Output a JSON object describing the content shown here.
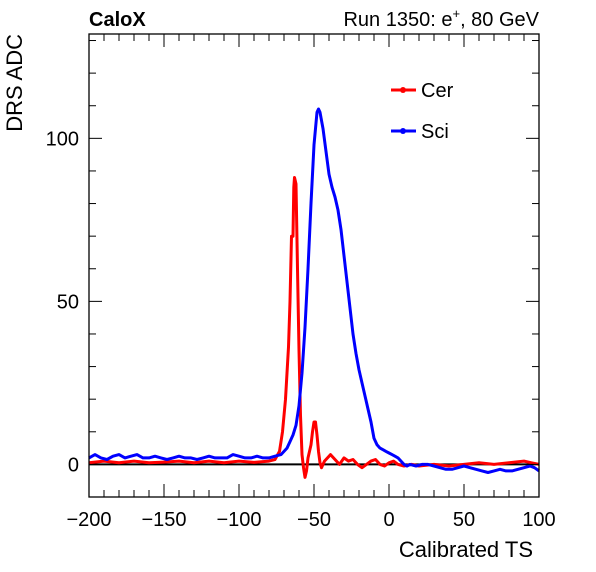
{
  "header": {
    "left": "CaloX",
    "right_prefix": "Run 1350: e",
    "right_sup": "+",
    "right_suffix": ", 80 GeV"
  },
  "chart_data": {
    "type": "line",
    "title": "",
    "xlabel": "Calibrated TS",
    "ylabel": "DRS ADC",
    "xlim": [
      -200,
      100
    ],
    "ylim": [
      -10,
      132
    ],
    "x_ticks": [
      -200,
      -150,
      -100,
      -50,
      0,
      50,
      100
    ],
    "x_tick_labels": [
      "−200",
      "−150",
      "−100",
      "−50",
      "0",
      "50",
      "100"
    ],
    "y_ticks": [
      0,
      50,
      100
    ],
    "y_tick_labels": [
      "0",
      "50",
      "100"
    ],
    "baseline_y": 0,
    "grid": false,
    "legend_position": "top-right",
    "series": [
      {
        "name": "Cer",
        "color": "#ff0000",
        "points": [
          [
            -200,
            0.5
          ],
          [
            -190,
            1.0
          ],
          [
            -180,
            0.5
          ],
          [
            -170,
            1.0
          ],
          [
            -160,
            0.5
          ],
          [
            -150,
            0.7
          ],
          [
            -140,
            1.0
          ],
          [
            -130,
            0.5
          ],
          [
            -120,
            1.0
          ],
          [
            -110,
            0.5
          ],
          [
            -100,
            1.0
          ],
          [
            -90,
            0.6
          ],
          [
            -80,
            1.0
          ],
          [
            -76,
            1.5
          ],
          [
            -73,
            4
          ],
          [
            -71,
            10
          ],
          [
            -69,
            20
          ],
          [
            -67,
            36
          ],
          [
            -66,
            50
          ],
          [
            -65,
            70
          ],
          [
            -64,
            70
          ],
          [
            -63.5,
            85
          ],
          [
            -63,
            88
          ],
          [
            -62,
            86
          ],
          [
            -61,
            60
          ],
          [
            -60,
            35
          ],
          [
            -59,
            15
          ],
          [
            -58,
            3
          ],
          [
            -57,
            -1
          ],
          [
            -56,
            -4
          ],
          [
            -55,
            -2
          ],
          [
            -54,
            2
          ],
          [
            -52,
            6
          ],
          [
            -51,
            10
          ],
          [
            -50,
            13
          ],
          [
            -49,
            13
          ],
          [
            -48,
            9
          ],
          [
            -47,
            4
          ],
          [
            -46,
            0.5
          ],
          [
            -45,
            -1
          ],
          [
            -44,
            0
          ],
          [
            -43,
            1
          ],
          [
            -41,
            2
          ],
          [
            -39,
            3
          ],
          [
            -37,
            2
          ],
          [
            -35,
            1
          ],
          [
            -33,
            0
          ],
          [
            -30,
            2
          ],
          [
            -27,
            1
          ],
          [
            -24,
            1.5
          ],
          [
            -21,
            0
          ],
          [
            -18,
            -1
          ],
          [
            -15,
            0
          ],
          [
            -12,
            1
          ],
          [
            -9,
            1.5
          ],
          [
            -6,
            0
          ],
          [
            -3,
            -0.5
          ],
          [
            0,
            0.5
          ],
          [
            3,
            1
          ],
          [
            6,
            0
          ],
          [
            10,
            -0.5
          ],
          [
            15,
            0
          ],
          [
            20,
            -0.5
          ],
          [
            30,
            0
          ],
          [
            40,
            -0.5
          ],
          [
            50,
            0
          ],
          [
            60,
            0.5
          ],
          [
            70,
            0
          ],
          [
            80,
            0.5
          ],
          [
            90,
            1
          ],
          [
            95,
            0.5
          ],
          [
            100,
            0
          ]
        ]
      },
      {
        "name": "Sci",
        "color": "#0000ff",
        "points": [
          [
            -200,
            2
          ],
          [
            -196,
            3
          ],
          [
            -192,
            2
          ],
          [
            -188,
            1.5
          ],
          [
            -184,
            2.5
          ],
          [
            -180,
            3
          ],
          [
            -176,
            2
          ],
          [
            -172,
            2.5
          ],
          [
            -168,
            3
          ],
          [
            -164,
            2
          ],
          [
            -160,
            2
          ],
          [
            -156,
            2.5
          ],
          [
            -152,
            2
          ],
          [
            -148,
            1.5
          ],
          [
            -144,
            2
          ],
          [
            -140,
            2.5
          ],
          [
            -136,
            2
          ],
          [
            -132,
            2
          ],
          [
            -128,
            1.5
          ],
          [
            -124,
            2
          ],
          [
            -120,
            2.5
          ],
          [
            -116,
            2
          ],
          [
            -112,
            2
          ],
          [
            -108,
            2
          ],
          [
            -104,
            3
          ],
          [
            -100,
            2.5
          ],
          [
            -96,
            2
          ],
          [
            -92,
            2
          ],
          [
            -88,
            2.5
          ],
          [
            -84,
            2
          ],
          [
            -80,
            2
          ],
          [
            -76,
            2.5
          ],
          [
            -72,
            3
          ],
          [
            -70,
            4
          ],
          [
            -68,
            5
          ],
          [
            -66,
            7
          ],
          [
            -64,
            9
          ],
          [
            -62,
            12
          ],
          [
            -60,
            18
          ],
          [
            -58,
            28
          ],
          [
            -56,
            42
          ],
          [
            -54,
            60
          ],
          [
            -52,
            80
          ],
          [
            -50,
            98
          ],
          [
            -48,
            108
          ],
          [
            -47,
            109
          ],
          [
            -46,
            108
          ],
          [
            -44,
            103
          ],
          [
            -42,
            96
          ],
          [
            -40,
            89
          ],
          [
            -38,
            85
          ],
          [
            -36,
            82
          ],
          [
            -34,
            78
          ],
          [
            -32,
            72
          ],
          [
            -30,
            64
          ],
          [
            -28,
            56
          ],
          [
            -26,
            48
          ],
          [
            -24,
            40
          ],
          [
            -22,
            34
          ],
          [
            -20,
            29
          ],
          [
            -18,
            25
          ],
          [
            -16,
            21
          ],
          [
            -14,
            17
          ],
          [
            -12,
            13
          ],
          [
            -10,
            8
          ],
          [
            -8,
            6
          ],
          [
            -6,
            5
          ],
          [
            -4,
            4.5
          ],
          [
            -2,
            4
          ],
          [
            0,
            3.5
          ],
          [
            2,
            3
          ],
          [
            4,
            2.5
          ],
          [
            6,
            2
          ],
          [
            8,
            1
          ],
          [
            10,
            0
          ],
          [
            12,
            -0.5
          ],
          [
            14,
            0
          ],
          [
            18,
            -0.5
          ],
          [
            22,
            0
          ],
          [
            26,
            0
          ],
          [
            30,
            -0.5
          ],
          [
            34,
            -1
          ],
          [
            38,
            -1.5
          ],
          [
            42,
            -1.5
          ],
          [
            46,
            -1
          ],
          [
            50,
            -0.5
          ],
          [
            54,
            -1
          ],
          [
            58,
            -1.5
          ],
          [
            62,
            -2
          ],
          [
            66,
            -2.5
          ],
          [
            70,
            -2
          ],
          [
            74,
            -1.5
          ],
          [
            78,
            -2
          ],
          [
            82,
            -2
          ],
          [
            86,
            -1.5
          ],
          [
            90,
            -1
          ],
          [
            94,
            -0.5
          ],
          [
            97,
            -1
          ],
          [
            100,
            -2
          ]
        ]
      }
    ]
  }
}
